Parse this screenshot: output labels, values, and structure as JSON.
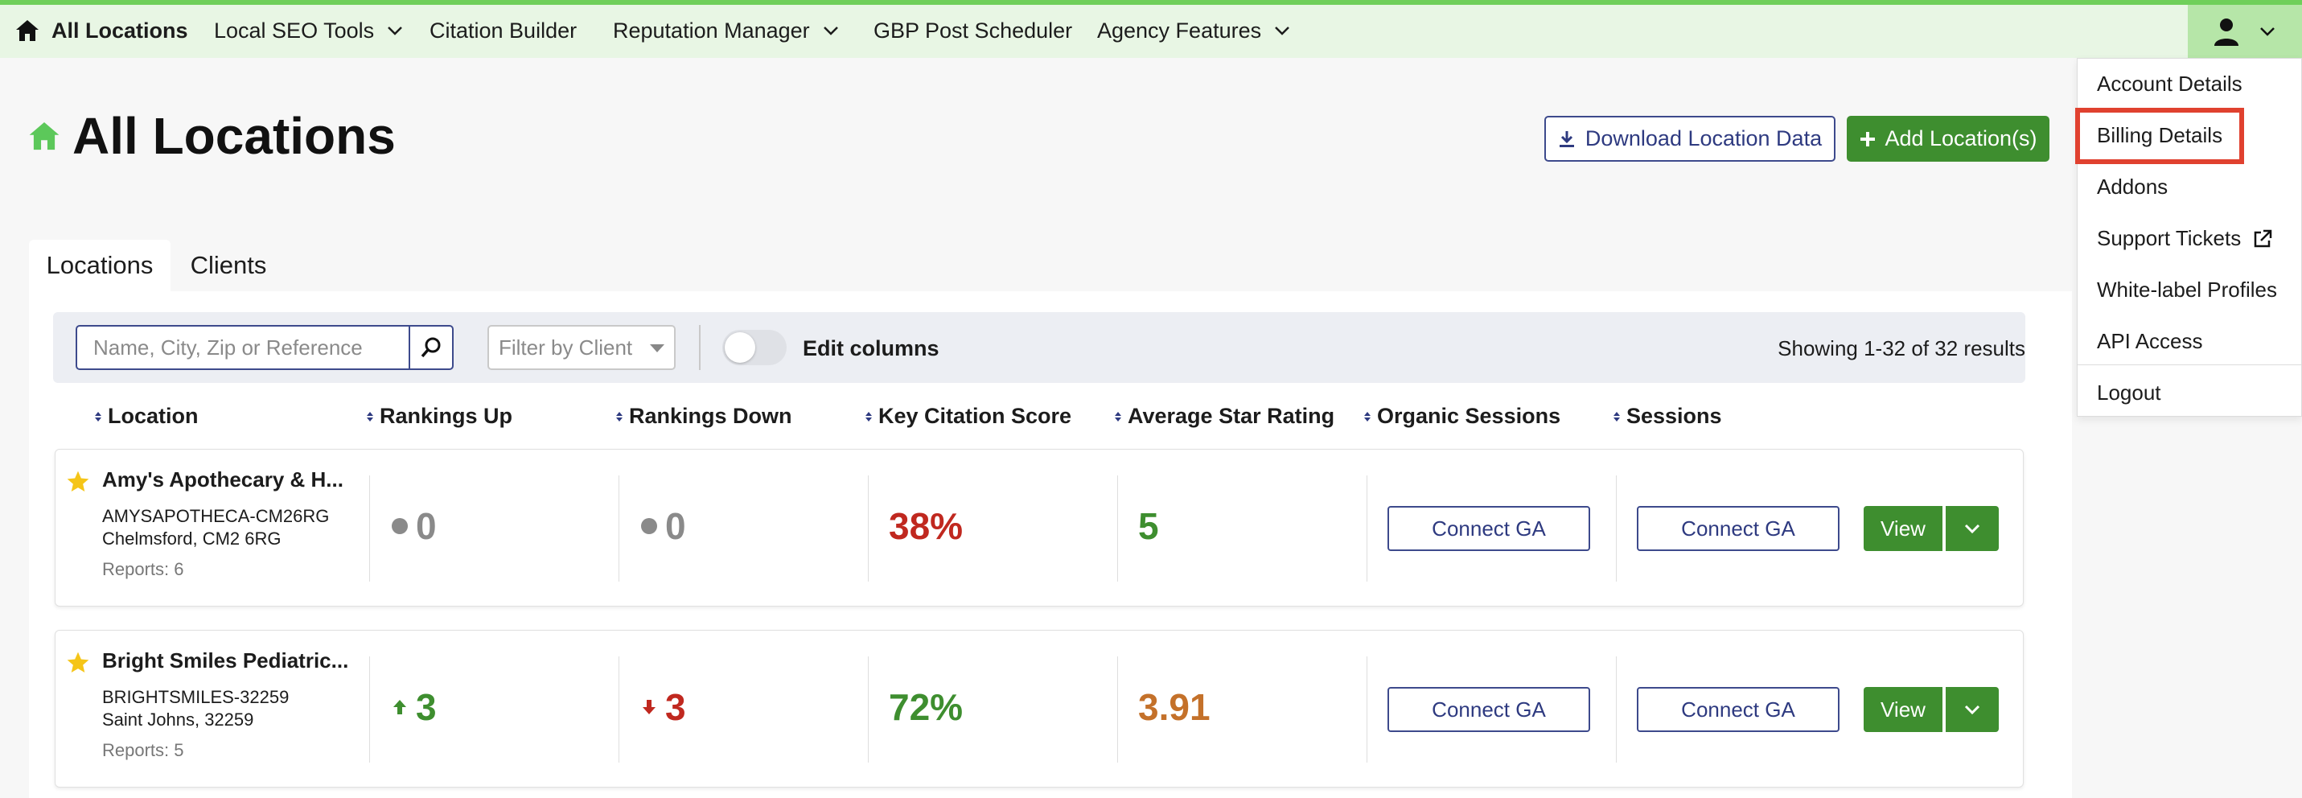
{
  "nav": {
    "home_label": "All Locations",
    "items": [
      {
        "label": "Local SEO Tools"
      },
      {
        "label": "Citation Builder"
      },
      {
        "label": "Reputation Manager"
      },
      {
        "label": "GBP Post Scheduler"
      },
      {
        "label": "Agency Features"
      }
    ]
  },
  "page": {
    "title": "All Locations",
    "download_label": "Download Location Data",
    "add_label": "Add Location(s)"
  },
  "tabs": [
    {
      "label": "Locations"
    },
    {
      "label": "Clients"
    }
  ],
  "filters": {
    "search_placeholder": "Name, City, Zip or Reference",
    "client_placeholder": "Filter by Client",
    "edit_columns_label": "Edit columns",
    "showing_text": "Showing 1-32 of 32 results"
  },
  "columns": [
    {
      "label": "Location"
    },
    {
      "label": "Rankings Up"
    },
    {
      "label": "Rankings Down"
    },
    {
      "label": "Key Citation Score"
    },
    {
      "label": "Average Star Rating"
    },
    {
      "label": "Organic Sessions"
    },
    {
      "label": "Sessions"
    }
  ],
  "rows": [
    {
      "name": "Amy's Apothecary & H...",
      "reference": "AMYSAPOTHECA-CM26RG",
      "city": "Chelmsford, CM2 6RG",
      "reports": "Reports: 6",
      "rankings_up": "0",
      "rankings_down": "0",
      "citation_score": "38%",
      "star_rating": "5",
      "organic_btn": "Connect GA",
      "sessions_btn": "Connect GA",
      "view_label": "View"
    },
    {
      "name": "Bright Smiles Pediatric...",
      "reference": "BRIGHTSMILES-32259",
      "city": "Saint Johns, 32259",
      "reports": "Reports: 5",
      "rankings_up": "3",
      "rankings_down": "3",
      "citation_score": "72%",
      "star_rating": "3.91",
      "organic_btn": "Connect GA",
      "sessions_btn": "Connect GA",
      "view_label": "View"
    }
  ],
  "account_menu": {
    "items": [
      {
        "label": "Account Details"
      },
      {
        "label": "Billing Details"
      },
      {
        "label": "Addons"
      },
      {
        "label": "Support Tickets"
      },
      {
        "label": "White-label Profiles"
      },
      {
        "label": "API Access"
      },
      {
        "label": "Logout"
      }
    ]
  },
  "colors": {
    "brand_green": "#3e8e2f",
    "nav_bg": "#e8f6e4",
    "accent_navy": "#2e3a80",
    "negative_red": "#c0281f",
    "rating_orange": "#c4712a",
    "highlight_red": "#e0412f"
  }
}
